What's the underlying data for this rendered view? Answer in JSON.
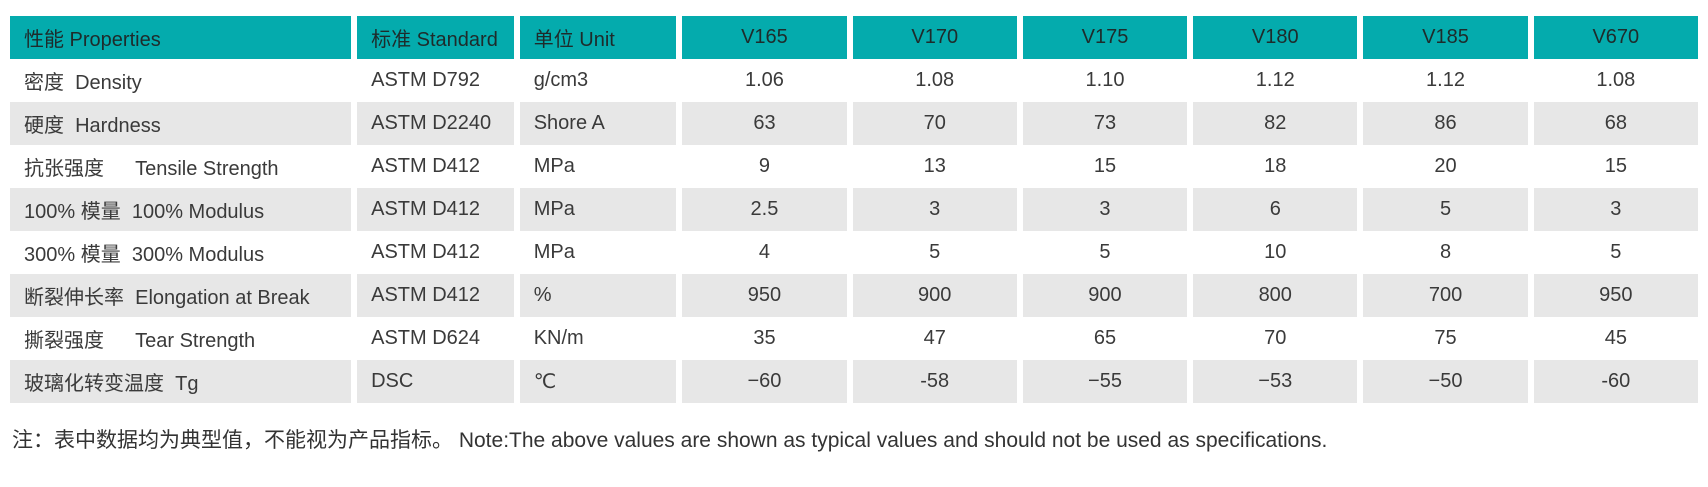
{
  "theme": {
    "header_bg": "#04abad",
    "row_alt_bg": "#e7e7e7",
    "text_color": "#3a3a3a"
  },
  "table": {
    "columns": [
      {
        "key": "property",
        "label": "性能  Properties",
        "align": "left"
      },
      {
        "key": "standard",
        "label": "标准 Standard",
        "align": "left"
      },
      {
        "key": "unit",
        "label": "单位 Unit",
        "align": "left"
      },
      {
        "key": "v165",
        "label": "V165",
        "align": "center"
      },
      {
        "key": "v170",
        "label": "V170",
        "align": "center"
      },
      {
        "key": "v175",
        "label": "V175",
        "align": "center"
      },
      {
        "key": "v180",
        "label": "V180",
        "align": "center"
      },
      {
        "key": "v185",
        "label": "V185",
        "align": "center"
      },
      {
        "key": "v670",
        "label": "V670",
        "align": "center"
      }
    ],
    "rows": [
      {
        "property": "密度  Density",
        "standard": "ASTM D792",
        "unit": "g/cm3",
        "values": [
          "1.06",
          "1.08",
          "1.10",
          "1.12",
          "1.12",
          "1.08"
        ]
      },
      {
        "property": "硬度  Hardness",
        "standard": "ASTM D2240",
        "unit": "Shore A",
        "values": [
          "63",
          "70",
          "73",
          "82",
          "86",
          "68"
        ]
      },
      {
        "property": "抗张强度　  Tensile Strength",
        "standard": "ASTM D412",
        "unit": "MPa",
        "values": [
          "9",
          "13",
          "15",
          "18",
          "20",
          "15"
        ]
      },
      {
        "property": "100% 模量  100% Modulus",
        "standard": "ASTM D412",
        "unit": "MPa",
        "values": [
          "2.5",
          "3",
          "3",
          "6",
          "5",
          "3"
        ]
      },
      {
        "property": "300% 模量  300% Modulus",
        "standard": "ASTM D412",
        "unit": "MPa",
        "values": [
          "4",
          "5",
          "5",
          "10",
          "8",
          "5"
        ]
      },
      {
        "property": "断裂伸长率  Elongation at Break",
        "standard": "ASTM D412",
        "unit": "%",
        "values": [
          "950",
          "900",
          "900",
          "800",
          "700",
          "950"
        ]
      },
      {
        "property": "撕裂强度　  Tear Strength",
        "standard": "ASTM D624",
        "unit": "KN/m",
        "values": [
          "35",
          "47",
          "65",
          "70",
          "75",
          "45"
        ]
      },
      {
        "property": "玻璃化转变温度  Tg",
        "standard": "DSC",
        "unit": "℃",
        "values": [
          "−60",
          "-58",
          "−55",
          "−53",
          "−50",
          "-60"
        ]
      }
    ]
  },
  "note": "注：表中数据均为典型值，不能视为产品指标。 Note:The above values are shown as typical values and should not be used as specifications."
}
